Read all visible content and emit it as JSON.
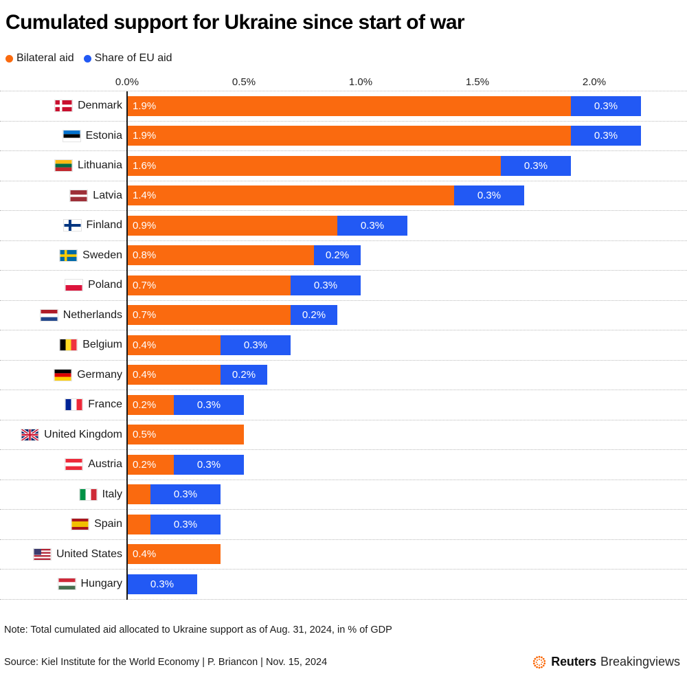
{
  "title": "Cumulated support for Ukraine since start of war",
  "legend": [
    {
      "label": "Bilateral aid",
      "color": "#fa6a0f"
    },
    {
      "label": "Share of EU aid",
      "color": "#2259f4"
    }
  ],
  "chart_data": {
    "type": "bar",
    "orientation": "horizontal",
    "stacked": true,
    "unit": "% of GDP",
    "x_ticks": [
      "0.0%",
      "0.5%",
      "1.0%",
      "1.5%",
      "2.0%"
    ],
    "x_range": [
      0,
      2.4
    ],
    "series": [
      "Bilateral aid",
      "Share of EU aid"
    ],
    "rows": [
      {
        "country": "Denmark",
        "flag": "dk",
        "bilateral": 1.9,
        "eu_share": 0.3,
        "bilateral_label": "1.9%",
        "eu_label": "0.3%"
      },
      {
        "country": "Estonia",
        "flag": "ee",
        "bilateral": 1.9,
        "eu_share": 0.3,
        "bilateral_label": "1.9%",
        "eu_label": "0.3%"
      },
      {
        "country": "Lithuania",
        "flag": "lt",
        "bilateral": 1.6,
        "eu_share": 0.3,
        "bilateral_label": "1.6%",
        "eu_label": "0.3%"
      },
      {
        "country": "Latvia",
        "flag": "lv",
        "bilateral": 1.4,
        "eu_share": 0.3,
        "bilateral_label": "1.4%",
        "eu_label": "0.3%"
      },
      {
        "country": "Finland",
        "flag": "fi",
        "bilateral": 0.9,
        "eu_share": 0.3,
        "bilateral_label": "0.9%",
        "eu_label": "0.3%"
      },
      {
        "country": "Sweden",
        "flag": "se",
        "bilateral": 0.8,
        "eu_share": 0.2,
        "bilateral_label": "0.8%",
        "eu_label": "0.2%"
      },
      {
        "country": "Poland",
        "flag": "pl",
        "bilateral": 0.7,
        "eu_share": 0.3,
        "bilateral_label": "0.7%",
        "eu_label": "0.3%"
      },
      {
        "country": "Netherlands",
        "flag": "nl",
        "bilateral": 0.7,
        "eu_share": 0.2,
        "bilateral_label": "0.7%",
        "eu_label": "0.2%"
      },
      {
        "country": "Belgium",
        "flag": "be",
        "bilateral": 0.4,
        "eu_share": 0.3,
        "bilateral_label": "0.4%",
        "eu_label": "0.3%"
      },
      {
        "country": "Germany",
        "flag": "de",
        "bilateral": 0.4,
        "eu_share": 0.2,
        "bilateral_label": "0.4%",
        "eu_label": "0.2%"
      },
      {
        "country": "France",
        "flag": "fr",
        "bilateral": 0.2,
        "eu_share": 0.3,
        "bilateral_label": "0.2%",
        "eu_label": "0.3%"
      },
      {
        "country": "United Kingdom",
        "flag": "gb",
        "bilateral": 0.5,
        "eu_share": 0,
        "bilateral_label": "0.5%",
        "eu_label": ""
      },
      {
        "country": "Austria",
        "flag": "at",
        "bilateral": 0.2,
        "eu_share": 0.3,
        "bilateral_label": "0.2%",
        "eu_label": "0.3%"
      },
      {
        "country": "Italy",
        "flag": "it",
        "bilateral": 0.1,
        "eu_share": 0.3,
        "bilateral_label": "",
        "eu_label": "0.3%"
      },
      {
        "country": "Spain",
        "flag": "es",
        "bilateral": 0.1,
        "eu_share": 0.3,
        "bilateral_label": "",
        "eu_label": "0.3%"
      },
      {
        "country": "United States",
        "flag": "us",
        "bilateral": 0.4,
        "eu_share": 0,
        "bilateral_label": "0.4%",
        "eu_label": ""
      },
      {
        "country": "Hungary",
        "flag": "hu",
        "bilateral": 0,
        "eu_share": 0.3,
        "bilateral_label": "",
        "eu_label": "0.3%"
      }
    ]
  },
  "note": "Note: Total cumulated aid allocated to Ukraine support as of Aug. 31, 2024, in % of GDP",
  "source": "Source: Kiel Institute for the World Economy | P. Briancon | Nov. 15, 2024",
  "branding": {
    "name": "Reuters",
    "suffix": "Breakingviews",
    "logo_color": "#fa6400"
  }
}
